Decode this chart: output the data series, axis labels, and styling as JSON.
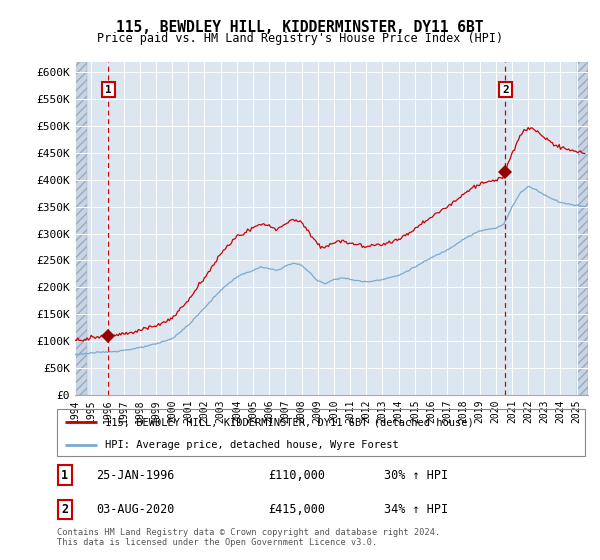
{
  "title": "115, BEWDLEY HILL, KIDDERMINSTER, DY11 6BT",
  "subtitle": "Price paid vs. HM Land Registry's House Price Index (HPI)",
  "ylim": [
    0,
    620000
  ],
  "yticks": [
    0,
    50000,
    100000,
    150000,
    200000,
    250000,
    300000,
    350000,
    400000,
    450000,
    500000,
    550000,
    600000
  ],
  "ytick_labels": [
    "£0",
    "£50K",
    "£100K",
    "£150K",
    "£200K",
    "£250K",
    "£300K",
    "£350K",
    "£400K",
    "£450K",
    "£500K",
    "£550K",
    "£600K"
  ],
  "plot_bg_color": "#dce6f1",
  "hatch_color": "#c8d4e4",
  "legend_label_red": "115, BEWDLEY HILL, KIDDERMINSTER, DY11 6BT (detached house)",
  "legend_label_blue": "HPI: Average price, detached house, Wyre Forest",
  "sale1_date": "25-JAN-1996",
  "sale1_price": "£110,000",
  "sale1_hpi": "30% ↑ HPI",
  "sale2_date": "03-AUG-2020",
  "sale2_price": "£415,000",
  "sale2_hpi": "34% ↑ HPI",
  "footer": "Contains HM Land Registry data © Crown copyright and database right 2024.\nThis data is licensed under the Open Government Licence v3.0.",
  "red_line_color": "#cc0000",
  "blue_line_color": "#7aaad0",
  "marker_color": "#990000",
  "dashed_line_color": "#cc0000",
  "sale1_year": 1996.07,
  "sale2_year": 2020.6,
  "sale1_value": 110000,
  "sale2_value": 415000,
  "xlim_left": 1994.0,
  "xlim_right": 2025.7,
  "hatch_left_end": 1994.75,
  "hatch_right_start": 2025.0
}
